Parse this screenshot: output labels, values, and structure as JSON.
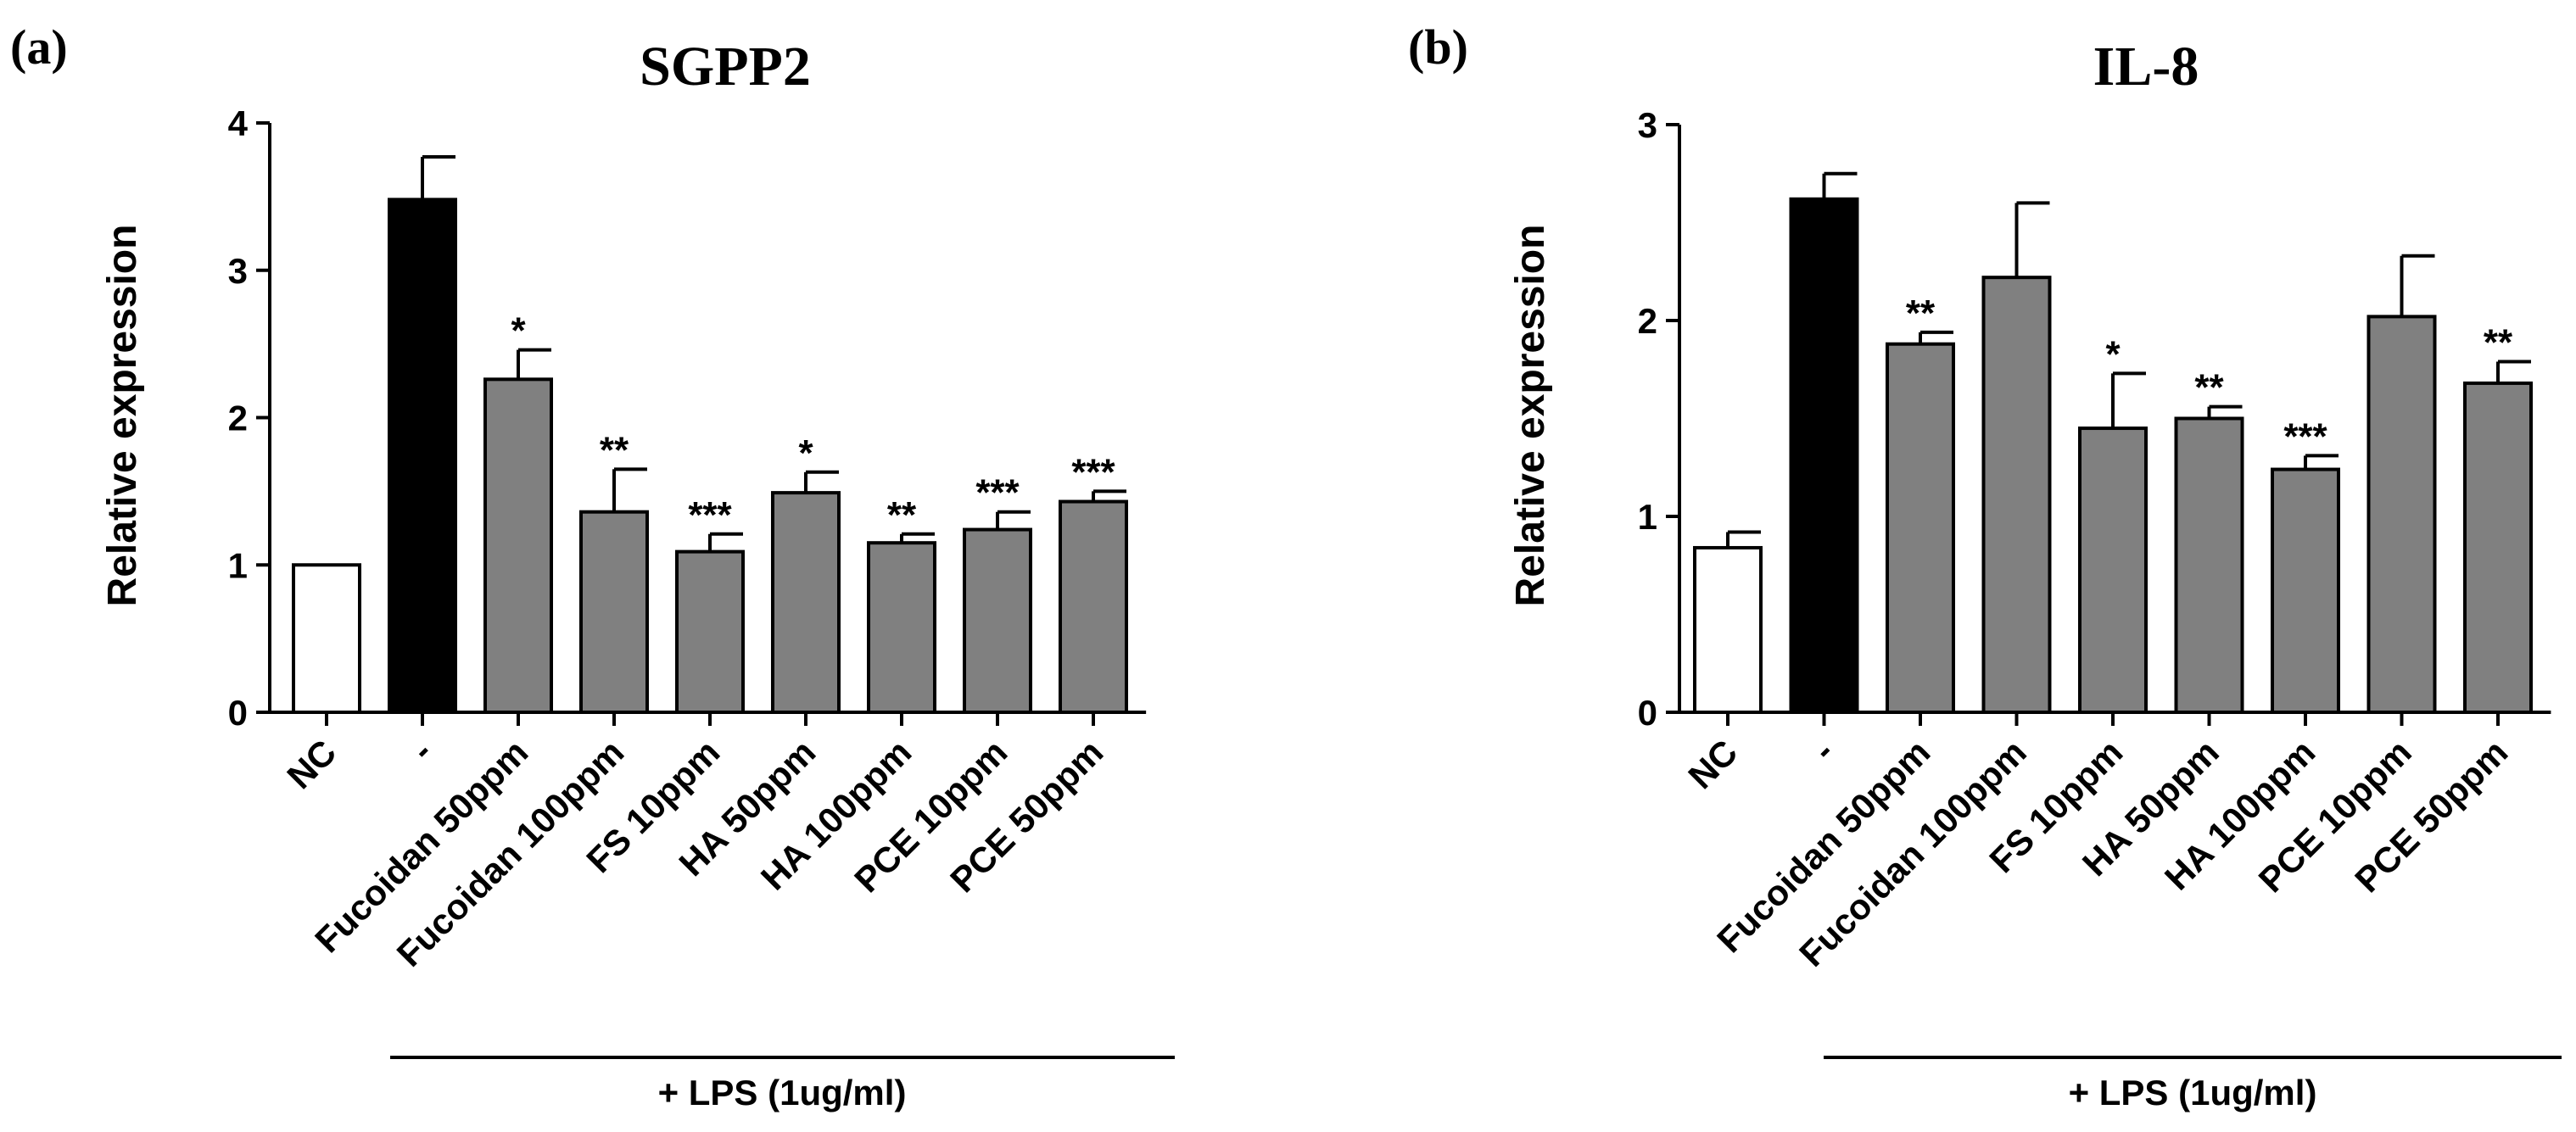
{
  "chart_data": [
    {
      "panel": "(a)",
      "type": "bar",
      "title": "SGPP2",
      "ylabel": "Relative expression",
      "xlabel": "",
      "ylim": [
        0,
        4
      ],
      "yticks": [
        "0",
        "1",
        "2",
        "3",
        "4"
      ],
      "categories": [
        "NC",
        "-",
        "Fucoidan 50ppm",
        "Fucoidan 100ppm",
        "FS 10ppm",
        "HA 50ppm",
        "HA 100ppm",
        "PCE 10ppm",
        "PCE 50ppm"
      ],
      "values": [
        1.0,
        3.48,
        2.26,
        1.36,
        1.09,
        1.49,
        1.15,
        1.24,
        1.43
      ],
      "errors": [
        0.0,
        0.29,
        0.2,
        0.29,
        0.12,
        0.14,
        0.06,
        0.12,
        0.07
      ],
      "significance": [
        "",
        "",
        "*",
        "**",
        "***",
        "*",
        "**",
        "***",
        "***"
      ],
      "fills": [
        "#ffffff",
        "#000000",
        "#808080",
        "#808080",
        "#808080",
        "#808080",
        "#808080",
        "#808080",
        "#808080"
      ],
      "group_label": "+ LPS (1ug/ml)"
    },
    {
      "panel": "(b)",
      "type": "bar",
      "title": "IL-8",
      "ylabel": "Relative expression",
      "xlabel": "",
      "ylim": [
        0,
        3
      ],
      "yticks": [
        "0",
        "1",
        "2",
        "3"
      ],
      "categories": [
        "NC",
        "-",
        "Fucoidan 50ppm",
        "Fucoidan 100ppm",
        "FS 10ppm",
        "HA 50ppm",
        "HA 100ppm",
        "PCE 10ppm",
        "PCE 50ppm"
      ],
      "values": [
        0.84,
        2.62,
        1.88,
        2.22,
        1.45,
        1.5,
        1.24,
        2.02,
        1.68
      ],
      "errors": [
        0.08,
        0.13,
        0.06,
        0.38,
        0.28,
        0.06,
        0.07,
        0.31,
        0.11
      ],
      "significance": [
        "",
        "",
        "**",
        "",
        "*",
        "**",
        "***",
        "",
        "**"
      ],
      "fills": [
        "#ffffff",
        "#000000",
        "#808080",
        "#808080",
        "#808080",
        "#808080",
        "#808080",
        "#808080",
        "#808080"
      ],
      "group_label": "+ LPS (1ug/ml)"
    }
  ]
}
